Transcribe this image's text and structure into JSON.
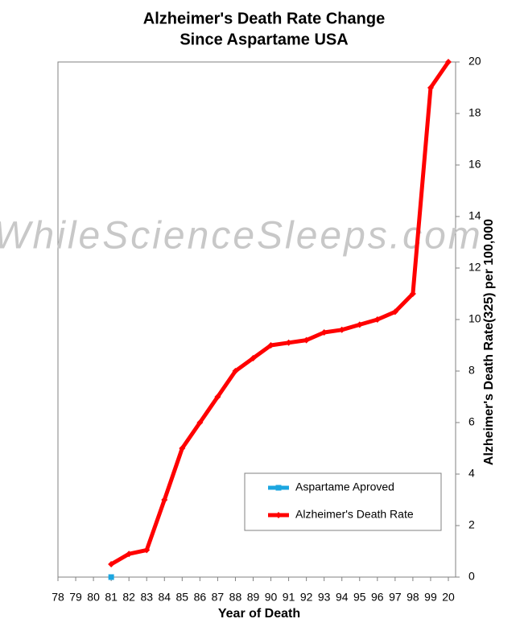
{
  "chart_data": {
    "type": "line",
    "title": [
      "Alzheimer's Death Rate Change",
      "Since Aspartame USA"
    ],
    "watermark": "WhileScienceSleeps.com",
    "x_label": "Year of Death",
    "y_label": "Alzheimer's Death Rate(325) per 100,000",
    "categories": [
      "78",
      "79",
      "80",
      "81",
      "82",
      "83",
      "84",
      "85",
      "86",
      "87",
      "88",
      "89",
      "90",
      "91",
      "92",
      "93",
      "94",
      "95",
      "96",
      "97",
      "98",
      "99",
      "20"
    ],
    "series": [
      {
        "name": "Aspartame Aproved",
        "color": "#1ca6e0",
        "values": [
          null,
          null,
          null,
          0,
          null,
          null,
          null,
          null,
          null,
          null,
          null,
          null,
          null,
          null,
          null,
          null,
          null,
          null,
          null,
          null,
          null,
          null,
          null
        ]
      },
      {
        "name": "Alzheimer's Death Rate",
        "color": "#ff0000",
        "values": [
          null,
          null,
          null,
          0.5,
          0.9,
          1.05,
          3,
          5,
          6,
          7,
          8,
          8.5,
          9,
          9.1,
          9.2,
          9.5,
          9.6,
          9.8,
          10,
          10.3,
          11,
          19,
          20
        ]
      }
    ],
    "ylim": [
      0,
      20
    ],
    "yticks": [
      0,
      2,
      4,
      6,
      8,
      10,
      12,
      14,
      16,
      18,
      20
    ],
    "y_axis_side": "right",
    "grid": false,
    "legend": "lower right"
  }
}
